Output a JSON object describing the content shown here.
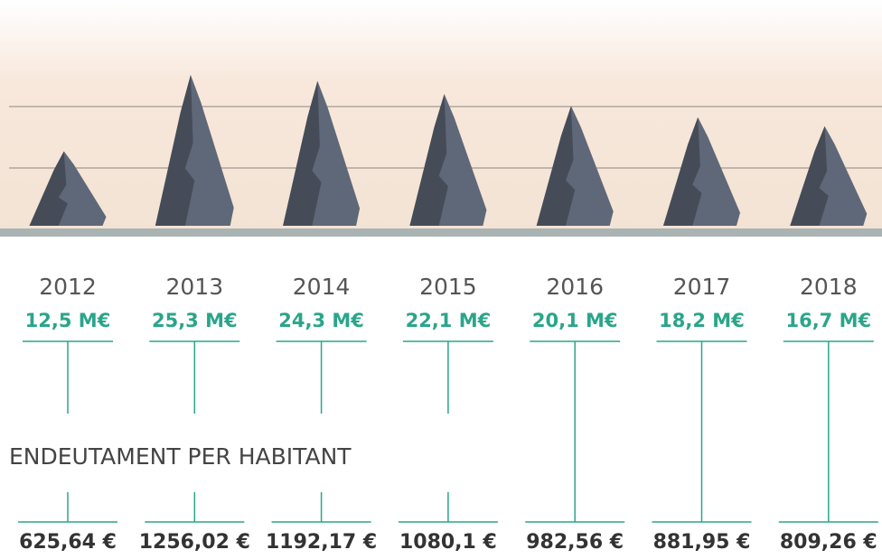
{
  "chart_data": {
    "type": "rock",
    "categories": [
      "2012",
      "2013",
      "2014",
      "2015",
      "2016",
      "2017",
      "2018"
    ],
    "values": [
      12.5,
      25.3,
      24.3,
      22.1,
      20.1,
      18.2,
      16.7
    ],
    "value_labels": [
      "12,5 M€",
      "25,3 M€",
      "24,3 M€",
      "22,1 M€",
      "20,1 M€",
      "18,2 M€",
      "16,7 M€"
    ],
    "color": "#5f6878",
    "per_capita_title": "ENDEUTAMENT PER HABITANT",
    "per_capita": [
      "625,64 €",
      "1256,02 €",
      "1192,17 €",
      "1080,1 €",
      "982,56 €",
      "881,95 €",
      "809,26 €"
    ]
  }
}
